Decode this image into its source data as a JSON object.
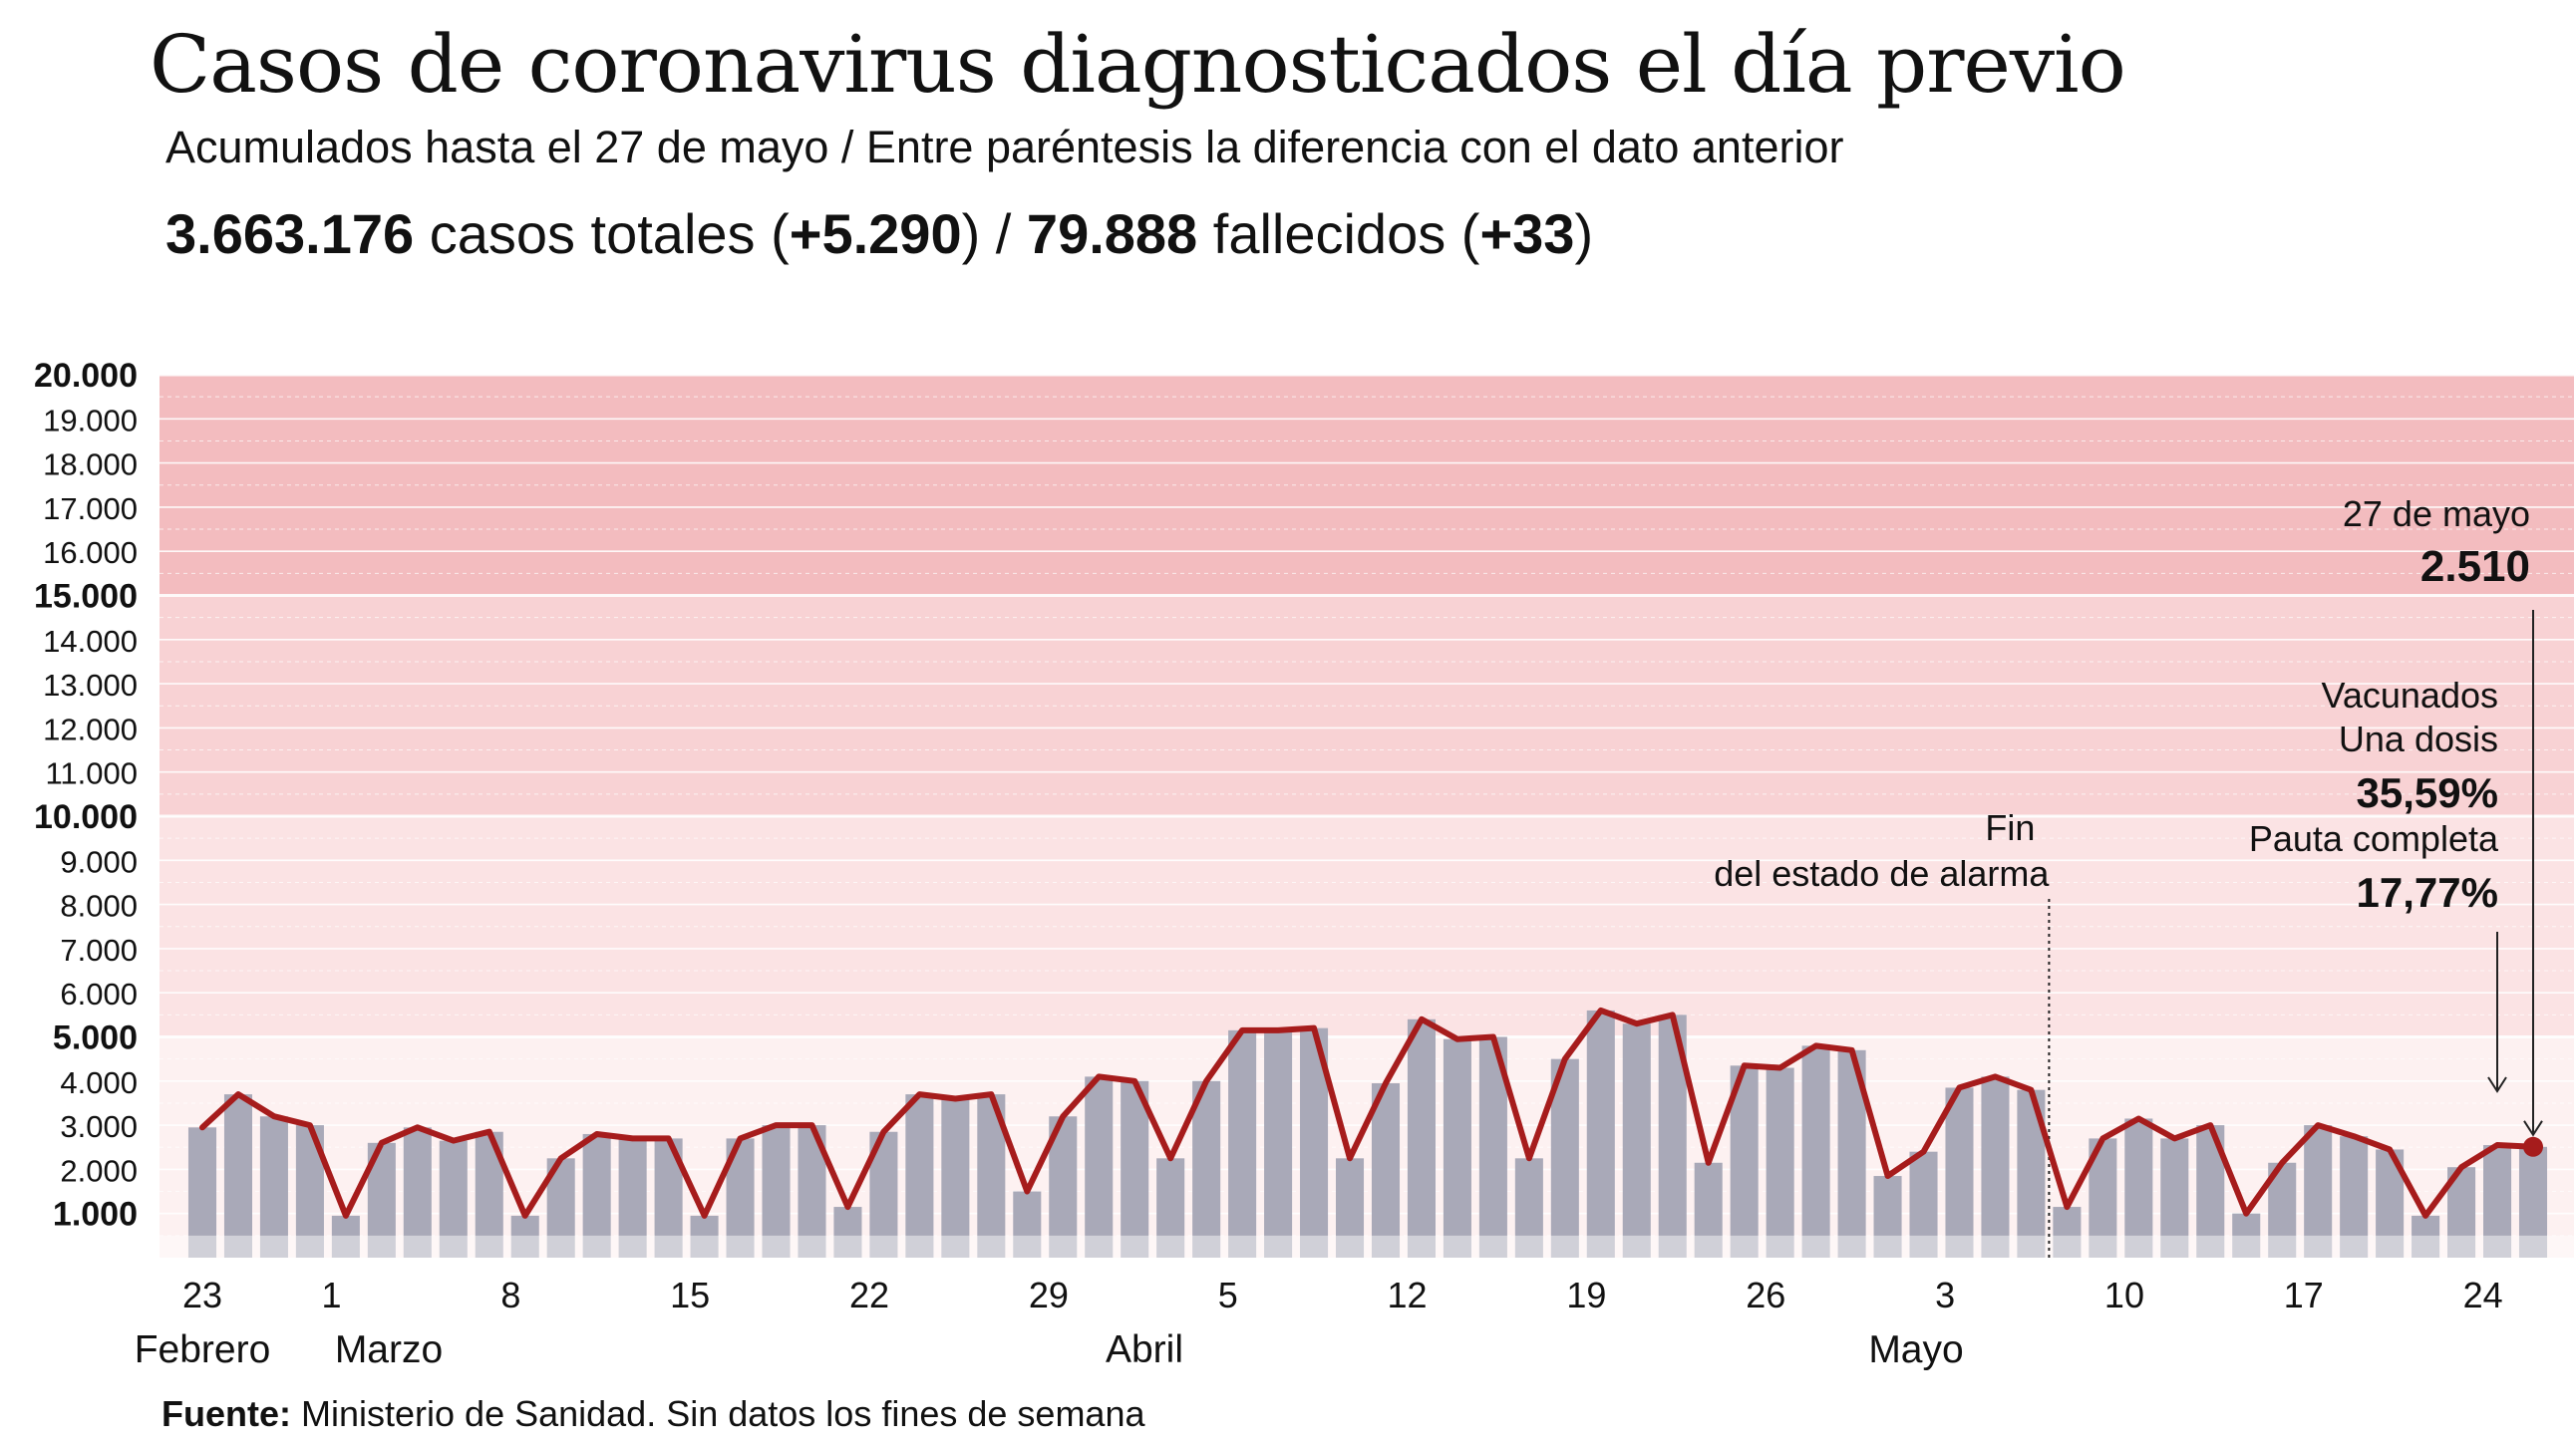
{
  "header": {
    "title": "Casos de coronavirus diagnosticados el día previo",
    "subtitle": "Acumulados hasta el 27 de mayo / Entre paréntesis la diferencia con el dato anterior",
    "total_cases": "3.663.176",
    "total_cases_label": " casos totales (",
    "new_cases": "+5.290",
    "separator": ") / ",
    "deaths": "79.888",
    "deaths_label": " fallecidos (",
    "new_deaths": "+33",
    "close_paren": ")"
  },
  "source": {
    "label": "Fuente:",
    "text": " Ministerio de Sanidad. Sin datos los fines de semana"
  },
  "colors": {
    "line": "#a61c1c",
    "bar": "#a9a9b8",
    "band_high": "#f3bcbf",
    "band_mid": "#f8d2d4",
    "band_low": "#fbe3e4",
    "band_base": "#fdf1f1"
  },
  "chart_data": {
    "type": "bar",
    "title": "Casos de coronavirus diagnosticados el día previo",
    "ylim": [
      0,
      20000
    ],
    "y_ticks": [
      "1.000",
      "2.000",
      "3.000",
      "4.000",
      "5.000",
      "6.000",
      "7.000",
      "8.000",
      "9.000",
      "10.000",
      "11.000",
      "12.000",
      "13.000",
      "14.000",
      "15.000",
      "16.000",
      "17.000",
      "18.000",
      "19.000",
      "20.000"
    ],
    "y_ticks_bold": [
      "1.000",
      "5.000",
      "10.000",
      "15.000",
      "20.000"
    ],
    "x_tick_labels": [
      "23",
      "1",
      "8",
      "15",
      "22",
      "29",
      "5",
      "12",
      "19",
      "26",
      "3",
      "10",
      "17",
      "24"
    ],
    "month_labels": [
      "Febrero",
      "Marzo",
      "Abril",
      "Mayo"
    ],
    "series": [
      {
        "values": [
          2950,
          3700,
          3200,
          3000,
          950,
          2600,
          2950,
          2650,
          2850,
          950,
          2250,
          2800,
          2700,
          2700,
          950,
          2700,
          3000,
          3000,
          1150,
          2850,
          3700,
          3600,
          3700,
          1500,
          3200,
          4100,
          4000,
          2250,
          4000,
          5150,
          5150,
          5200,
          2250,
          3950,
          5400,
          4950,
          5000,
          2250,
          4500,
          5600,
          5300,
          5500,
          2150,
          4350,
          4300,
          4800,
          4700,
          1850,
          2400,
          3850,
          4100,
          3800,
          1150,
          2700,
          3150,
          2700,
          3000,
          1000,
          2150,
          3000,
          2750,
          2450,
          950,
          2050,
          2550,
          2510
        ]
      }
    ],
    "annotations": {
      "last_date": "27 de mayo",
      "last_value": "2.510",
      "vac_title": "Vacunados",
      "vac_one_label": "Una dosis",
      "vac_one_value": "35,59%",
      "vac_full_label": "Pauta completa",
      "vac_full_value": "17,77%",
      "alarm_line1": "Fin",
      "alarm_line2": "del estado de alarma"
    }
  }
}
